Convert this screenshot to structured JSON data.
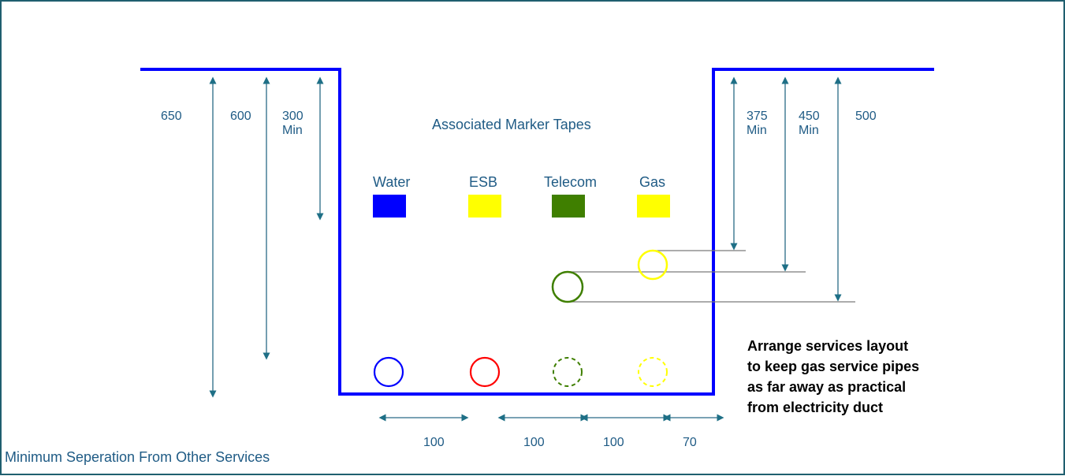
{
  "diagram": {
    "caption": "Minimum Seperation From Other Services",
    "marker_tapes_title": "Associated Marker Tapes",
    "tapes": [
      {
        "label": "Water",
        "color": "#0000ff"
      },
      {
        "label": "ESB",
        "color": "#ffff00"
      },
      {
        "label": "Telecom",
        "color": "#3f7f00"
      },
      {
        "label": "Gas",
        "color": "#ffff00"
      }
    ],
    "left_depths": [
      {
        "value": "650",
        "sub": ""
      },
      {
        "value": "600",
        "sub": ""
      },
      {
        "value": "300",
        "sub": "Min"
      }
    ],
    "right_depths": [
      {
        "value": "375",
        "sub": "Min"
      },
      {
        "value": "450",
        "sub": "Min"
      },
      {
        "value": "500",
        "sub": ""
      }
    ],
    "spacings": [
      "100",
      "100",
      "100",
      "70"
    ],
    "note_lines": [
      "Arrange services layout",
      "to keep gas service pipes",
      "as far away as practical",
      "from electricity duct"
    ],
    "colors": {
      "trench": "#0000ff",
      "water": "#0000ff",
      "esb": "#ff0000",
      "telecom": "#3f7f00",
      "gas": "#ffff00",
      "border": "#1f5f6f",
      "dimension": "#1e6f86"
    }
  }
}
